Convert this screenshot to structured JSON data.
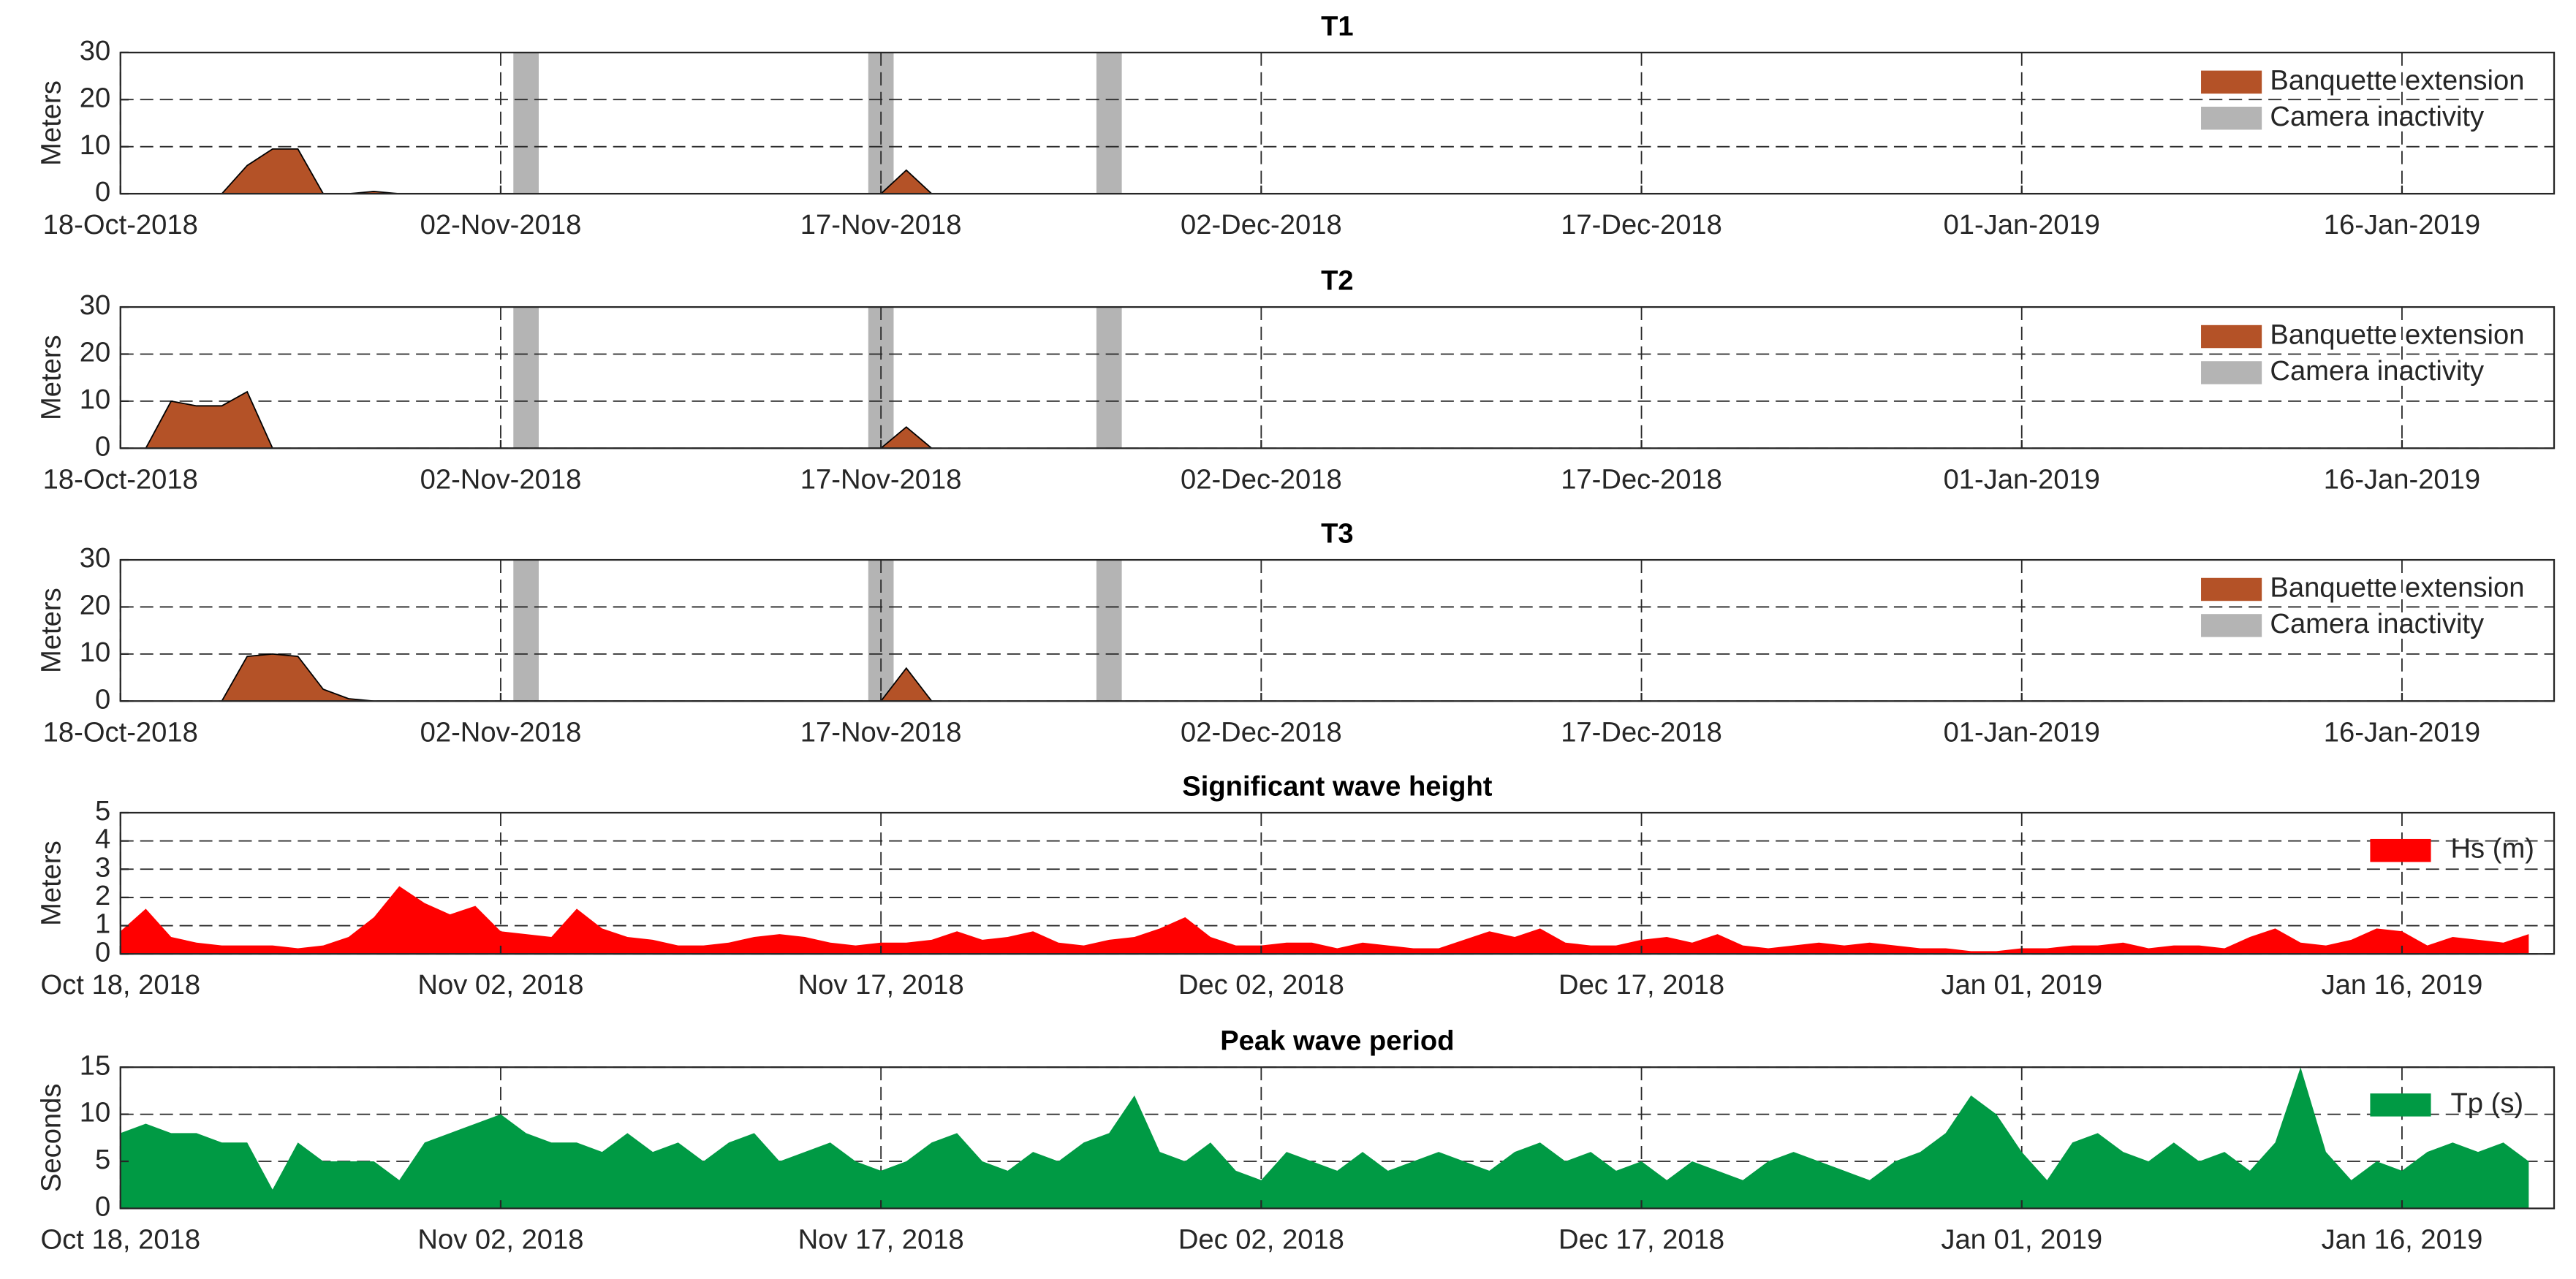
{
  "chart_data": [
    {
      "type": "area",
      "title": "T1",
      "ylabel": "Meters",
      "legend": "upper right",
      "grid": true,
      "xlim": [
        "2018-10-18",
        "2019-01-22"
      ],
      "xticks": [
        {
          "value": "2018-10-18",
          "label": "18-Oct-2018"
        },
        {
          "value": "2018-11-02",
          "label": "02-Nov-2018"
        },
        {
          "value": "2018-11-17",
          "label": "17-Nov-2018"
        },
        {
          "value": "2018-12-02",
          "label": "02-Dec-2018"
        },
        {
          "value": "2018-12-17",
          "label": "17-Dec-2018"
        },
        {
          "value": "2019-01-01",
          "label": "01-Jan-2019"
        },
        {
          "value": "2019-01-16",
          "label": "16-Jan-2019"
        }
      ],
      "ylim": [
        0,
        30
      ],
      "yticks": [
        0,
        10,
        20,
        30
      ],
      "series": [
        {
          "name": "Banquette extension",
          "color": "#b45227",
          "x": [
            "2018-10-22",
            "2018-10-23",
            "2018-10-24",
            "2018-10-25",
            "2018-10-26",
            "2018-10-27",
            "2018-10-28",
            "2018-10-29",
            "2018-11-17",
            "2018-11-18",
            "2018-11-19"
          ],
          "values": [
            0,
            6,
            9.5,
            9.5,
            0,
            0,
            0.5,
            0,
            0,
            5,
            0
          ]
        },
        {
          "name": "Camera inactivity",
          "color": "#b4b4b4",
          "kind": "span",
          "x": [
            "2018-11-03",
            "2018-11-17",
            "2018-11-26"
          ]
        }
      ]
    },
    {
      "type": "area",
      "title": "T2",
      "ylabel": "Meters",
      "legend": "upper right",
      "grid": true,
      "xlim": [
        "2018-10-18",
        "2019-01-22"
      ],
      "xticks": [
        {
          "value": "2018-10-18",
          "label": "18-Oct-2018"
        },
        {
          "value": "2018-11-02",
          "label": "02-Nov-2018"
        },
        {
          "value": "2018-11-17",
          "label": "17-Nov-2018"
        },
        {
          "value": "2018-12-02",
          "label": "02-Dec-2018"
        },
        {
          "value": "2018-12-17",
          "label": "17-Dec-2018"
        },
        {
          "value": "2019-01-01",
          "label": "01-Jan-2019"
        },
        {
          "value": "2019-01-16",
          "label": "16-Jan-2019"
        }
      ],
      "ylim": [
        0,
        30
      ],
      "yticks": [
        0,
        10,
        20,
        30
      ],
      "series": [
        {
          "name": "Banquette extension",
          "color": "#b45227",
          "x": [
            "2018-10-19",
            "2018-10-20",
            "2018-10-21",
            "2018-10-22",
            "2018-10-23",
            "2018-10-24",
            "2018-11-17",
            "2018-11-18",
            "2018-11-19"
          ],
          "values": [
            0,
            10,
            9,
            9,
            12,
            0,
            0,
            4.5,
            0
          ]
        },
        {
          "name": "Camera inactivity",
          "color": "#b4b4b4",
          "kind": "span",
          "x": [
            "2018-11-03",
            "2018-11-17",
            "2018-11-26"
          ]
        }
      ]
    },
    {
      "type": "area",
      "title": "T3",
      "ylabel": "Meters",
      "legend": "upper right",
      "grid": true,
      "xlim": [
        "2018-10-18",
        "2019-01-22"
      ],
      "xticks": [
        {
          "value": "2018-10-18",
          "label": "18-Oct-2018"
        },
        {
          "value": "2018-11-02",
          "label": "02-Nov-2018"
        },
        {
          "value": "2018-11-17",
          "label": "17-Nov-2018"
        },
        {
          "value": "2018-12-02",
          "label": "02-Dec-2018"
        },
        {
          "value": "2018-12-17",
          "label": "17-Dec-2018"
        },
        {
          "value": "2019-01-01",
          "label": "01-Jan-2019"
        },
        {
          "value": "2019-01-16",
          "label": "16-Jan-2019"
        }
      ],
      "ylim": [
        0,
        30
      ],
      "yticks": [
        0,
        10,
        20,
        30
      ],
      "series": [
        {
          "name": "Banquette extension",
          "color": "#b45227",
          "x": [
            "2018-10-22",
            "2018-10-23",
            "2018-10-24",
            "2018-10-25",
            "2018-10-26",
            "2018-10-27",
            "2018-10-28",
            "2018-11-17",
            "2018-11-18",
            "2018-11-19"
          ],
          "values": [
            0,
            9.5,
            10,
            9.5,
            2.5,
            0.5,
            0,
            0,
            7,
            0
          ]
        },
        {
          "name": "Camera inactivity",
          "color": "#b4b4b4",
          "kind": "span",
          "x": [
            "2018-11-03",
            "2018-11-17",
            "2018-11-26"
          ]
        }
      ]
    },
    {
      "type": "area",
      "title": "Significant wave height",
      "ylabel": "Meters",
      "legend": "upper right",
      "grid": true,
      "xlim": [
        "2018-10-18",
        "2019-01-22"
      ],
      "xticks": [
        {
          "value": "2018-10-18",
          "label": "Oct 18, 2018"
        },
        {
          "value": "2018-11-02",
          "label": "Nov 02, 2018"
        },
        {
          "value": "2018-11-17",
          "label": "Nov 17, 2018"
        },
        {
          "value": "2018-12-02",
          "label": "Dec 02, 2018"
        },
        {
          "value": "2018-12-17",
          "label": "Dec 17, 2018"
        },
        {
          "value": "2019-01-01",
          "label": "Jan 01, 2019"
        },
        {
          "value": "2019-01-16",
          "label": "Jan 16, 2019"
        }
      ],
      "ylim": [
        0,
        5
      ],
      "yticks": [
        0,
        1,
        2,
        3,
        4,
        5
      ],
      "series": [
        {
          "name": "Hs (m)",
          "color": "#ff0000",
          "x": [
            "2018-10-18",
            "2018-10-19",
            "2018-10-20",
            "2018-10-21",
            "2018-10-22",
            "2018-10-23",
            "2018-10-24",
            "2018-10-25",
            "2018-10-26",
            "2018-10-27",
            "2018-10-28",
            "2018-10-29",
            "2018-10-30",
            "2018-10-31",
            "2018-11-01",
            "2018-11-02",
            "2018-11-03",
            "2018-11-04",
            "2018-11-05",
            "2018-11-06",
            "2018-11-07",
            "2018-11-08",
            "2018-11-09",
            "2018-11-10",
            "2018-11-11",
            "2018-11-12",
            "2018-11-13",
            "2018-11-14",
            "2018-11-15",
            "2018-11-16",
            "2018-11-17",
            "2018-11-18",
            "2018-11-19",
            "2018-11-20",
            "2018-11-21",
            "2018-11-22",
            "2018-11-23",
            "2018-11-24",
            "2018-11-25",
            "2018-11-26",
            "2018-11-27",
            "2018-11-28",
            "2018-11-29",
            "2018-11-30",
            "2018-12-01",
            "2018-12-02",
            "2018-12-03",
            "2018-12-04",
            "2018-12-05",
            "2018-12-06",
            "2018-12-07",
            "2018-12-08",
            "2018-12-09",
            "2018-12-10",
            "2018-12-11",
            "2018-12-12",
            "2018-12-13",
            "2018-12-14",
            "2018-12-15",
            "2018-12-16",
            "2018-12-17",
            "2018-12-18",
            "2018-12-19",
            "2018-12-20",
            "2018-12-21",
            "2018-12-22",
            "2018-12-23",
            "2018-12-24",
            "2018-12-25",
            "2018-12-26",
            "2018-12-27",
            "2018-12-28",
            "2018-12-29",
            "2018-12-30",
            "2018-12-31",
            "2019-01-01",
            "2019-01-02",
            "2019-01-03",
            "2019-01-04",
            "2019-01-05",
            "2019-01-06",
            "2019-01-07",
            "2019-01-08",
            "2019-01-09",
            "2019-01-10",
            "2019-01-11",
            "2019-01-12",
            "2019-01-13",
            "2019-01-14",
            "2019-01-15",
            "2019-01-16",
            "2019-01-17",
            "2019-01-18",
            "2019-01-19",
            "2019-01-20",
            "2019-01-21"
          ],
          "values": [
            0.8,
            1.6,
            0.6,
            0.4,
            0.3,
            0.3,
            0.3,
            0.2,
            0.3,
            0.6,
            1.3,
            2.4,
            1.8,
            1.4,
            1.7,
            0.8,
            0.7,
            0.6,
            1.6,
            0.9,
            0.6,
            0.5,
            0.3,
            0.3,
            0.4,
            0.6,
            0.7,
            0.6,
            0.4,
            0.3,
            0.4,
            0.4,
            0.5,
            0.8,
            0.5,
            0.6,
            0.8,
            0.4,
            0.3,
            0.5,
            0.6,
            0.9,
            1.3,
            0.6,
            0.3,
            0.3,
            0.4,
            0.4,
            0.2,
            0.4,
            0.3,
            0.2,
            0.2,
            0.5,
            0.8,
            0.6,
            0.9,
            0.4,
            0.3,
            0.3,
            0.5,
            0.6,
            0.4,
            0.7,
            0.3,
            0.2,
            0.3,
            0.4,
            0.3,
            0.4,
            0.3,
            0.2,
            0.2,
            0.1,
            0.1,
            0.2,
            0.2,
            0.3,
            0.3,
            0.4,
            0.2,
            0.3,
            0.3,
            0.2,
            0.6,
            0.9,
            0.4,
            0.3,
            0.5,
            0.9,
            0.8,
            0.3,
            0.6,
            0.5,
            0.4,
            0.7
          ]
        }
      ]
    },
    {
      "type": "area",
      "title": "Peak wave period",
      "ylabel": "Seconds",
      "legend": "upper right",
      "grid": true,
      "xlim": [
        "2018-10-18",
        "2019-01-22"
      ],
      "xticks": [
        {
          "value": "2018-10-18",
          "label": "Oct 18, 2018"
        },
        {
          "value": "2018-11-02",
          "label": "Nov 02, 2018"
        },
        {
          "value": "2018-11-17",
          "label": "Nov 17, 2018"
        },
        {
          "value": "2018-12-02",
          "label": "Dec 02, 2018"
        },
        {
          "value": "2018-12-17",
          "label": "Dec 17, 2018"
        },
        {
          "value": "2019-01-01",
          "label": "Jan 01, 2019"
        },
        {
          "value": "2019-01-16",
          "label": "Jan 16, 2019"
        }
      ],
      "ylim": [
        0,
        15
      ],
      "yticks": [
        0,
        5,
        10,
        15
      ],
      "series": [
        {
          "name": "Tp (s)",
          "color": "#009a44",
          "x": [
            "2018-10-18",
            "2018-10-19",
            "2018-10-20",
            "2018-10-21",
            "2018-10-22",
            "2018-10-23",
            "2018-10-24",
            "2018-10-25",
            "2018-10-26",
            "2018-10-27",
            "2018-10-28",
            "2018-10-29",
            "2018-10-30",
            "2018-10-31",
            "2018-11-01",
            "2018-11-02",
            "2018-11-03",
            "2018-11-04",
            "2018-11-05",
            "2018-11-06",
            "2018-11-07",
            "2018-11-08",
            "2018-11-09",
            "2018-11-10",
            "2018-11-11",
            "2018-11-12",
            "2018-11-13",
            "2018-11-14",
            "2018-11-15",
            "2018-11-16",
            "2018-11-17",
            "2018-11-18",
            "2018-11-19",
            "2018-11-20",
            "2018-11-21",
            "2018-11-22",
            "2018-11-23",
            "2018-11-24",
            "2018-11-25",
            "2018-11-26",
            "2018-11-27",
            "2018-11-28",
            "2018-11-29",
            "2018-11-30",
            "2018-12-01",
            "2018-12-02",
            "2018-12-03",
            "2018-12-04",
            "2018-12-05",
            "2018-12-06",
            "2018-12-07",
            "2018-12-08",
            "2018-12-09",
            "2018-12-10",
            "2018-12-11",
            "2018-12-12",
            "2018-12-13",
            "2018-12-14",
            "2018-12-15",
            "2018-12-16",
            "2018-12-17",
            "2018-12-18",
            "2018-12-19",
            "2018-12-20",
            "2018-12-21",
            "2018-12-22",
            "2018-12-23",
            "2018-12-24",
            "2018-12-25",
            "2018-12-26",
            "2018-12-27",
            "2018-12-28",
            "2018-12-29",
            "2018-12-30",
            "2018-12-31",
            "2019-01-01",
            "2019-01-02",
            "2019-01-03",
            "2019-01-04",
            "2019-01-05",
            "2019-01-06",
            "2019-01-07",
            "2019-01-08",
            "2019-01-09",
            "2019-01-10",
            "2019-01-11",
            "2019-01-12",
            "2019-01-13",
            "2019-01-14",
            "2019-01-15",
            "2019-01-16",
            "2019-01-17",
            "2019-01-18",
            "2019-01-19",
            "2019-01-20",
            "2019-01-21"
          ],
          "values": [
            8,
            9,
            8,
            8,
            7,
            7,
            2,
            7,
            5,
            5,
            5,
            3,
            7,
            8,
            9,
            10,
            8,
            7,
            7,
            6,
            8,
            6,
            7,
            5,
            7,
            8,
            5,
            6,
            7,
            5,
            4,
            5,
            7,
            8,
            5,
            4,
            6,
            5,
            7,
            8,
            12,
            6,
            5,
            7,
            4,
            3,
            6,
            5,
            4,
            6,
            4,
            5,
            6,
            5,
            4,
            6,
            7,
            5,
            6,
            4,
            5,
            3,
            5,
            4,
            3,
            5,
            6,
            5,
            4,
            3,
            5,
            6,
            8,
            12,
            10,
            6,
            3,
            7,
            8,
            6,
            5,
            7,
            5,
            6,
            4,
            7,
            15,
            6,
            3,
            5,
            4,
            6,
            7,
            6,
            7,
            5
          ]
        }
      ]
    }
  ]
}
